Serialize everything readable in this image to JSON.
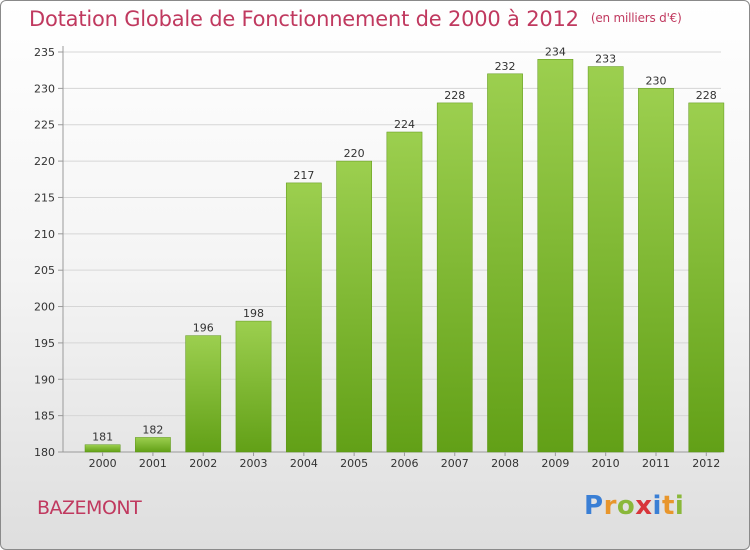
{
  "title": "Dotation Globale de Fonctionnement de 2000 à 2012",
  "unit": "(en milliers d'€)",
  "commune": "BAZEMONT",
  "logo": {
    "letters": [
      "P",
      "r",
      "o",
      "x",
      "i",
      "t",
      "i"
    ],
    "colors": [
      "#3a7fd5",
      "#e8962c",
      "#8ab83a",
      "#d8353a",
      "#3a7fd5",
      "#e8962c",
      "#8ab83a"
    ]
  },
  "colors": {
    "bar_top": "#9ccf4f",
    "bar_bottom": "#62a017",
    "title": "#c0395f"
  },
  "chart_data": {
    "type": "bar",
    "title": "Dotation Globale de Fonctionnement de 2000 à 2012",
    "categories": [
      "2000",
      "2001",
      "2002",
      "2003",
      "2004",
      "2005",
      "2006",
      "2007",
      "2008",
      "2009",
      "2010",
      "2011",
      "2012"
    ],
    "values": [
      181,
      182,
      196,
      198,
      217,
      220,
      224,
      228,
      232,
      234,
      233,
      230,
      228
    ],
    "data_labels": [
      "181",
      "182",
      "196",
      "198",
      "217",
      "220",
      "224",
      "228",
      "232",
      "234",
      "233",
      "230",
      "228"
    ],
    "ylim": [
      180,
      235
    ],
    "yticks": [
      180,
      185,
      190,
      195,
      200,
      205,
      210,
      215,
      220,
      225,
      230,
      235
    ],
    "grid": true,
    "legend": "none"
  }
}
